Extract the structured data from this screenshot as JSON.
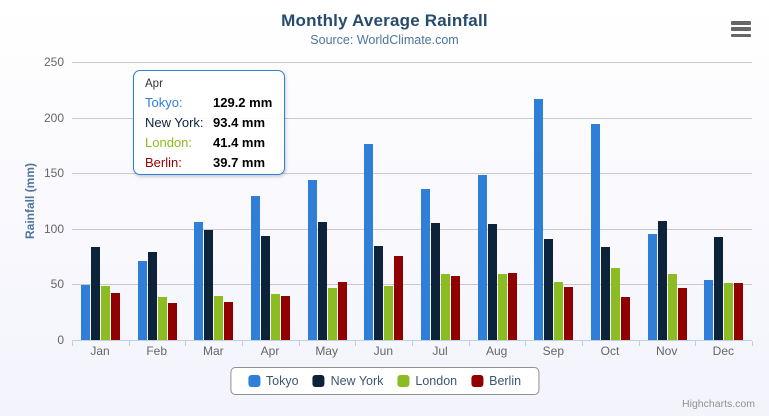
{
  "header": {
    "title": "Monthly Average Rainfall",
    "subtitle": "Source: WorldClimate.com"
  },
  "chart_data": {
    "type": "bar",
    "title": "Monthly Average Rainfall",
    "subtitle": "Source: WorldClimate.com",
    "categories": [
      "Jan",
      "Feb",
      "Mar",
      "Apr",
      "May",
      "Jun",
      "Jul",
      "Aug",
      "Sep",
      "Oct",
      "Nov",
      "Dec"
    ],
    "series": [
      {
        "name": "Tokyo",
        "color": "#2f7ed8",
        "values": [
          49.9,
          71.5,
          106.4,
          129.2,
          144.0,
          176.0,
          135.6,
          148.5,
          216.4,
          194.1,
          95.6,
          54.4
        ]
      },
      {
        "name": "New York",
        "color": "#0d233a",
        "values": [
          83.6,
          78.8,
          98.5,
          93.4,
          106.0,
          84.5,
          105.0,
          104.3,
          91.2,
          83.5,
          106.6,
          92.3
        ]
      },
      {
        "name": "London",
        "color": "#8bbc21",
        "values": [
          48.9,
          38.8,
          39.3,
          41.4,
          47.0,
          48.3,
          59.0,
          59.6,
          52.4,
          65.2,
          59.3,
          51.2
        ]
      },
      {
        "name": "Berlin",
        "color": "#910000",
        "values": [
          42.4,
          33.2,
          34.5,
          39.7,
          52.6,
          75.5,
          57.4,
          60.4,
          47.6,
          39.1,
          46.8,
          51.1
        ]
      }
    ],
    "xlabel": "",
    "ylabel": "Rainfall (mm)",
    "ylim": [
      0,
      250
    ],
    "yticks": [
      0,
      50,
      100,
      150,
      200,
      250
    ],
    "grid": true,
    "legend_position": "bottom"
  },
  "tooltip": {
    "header": "Apr",
    "border_color": "#2f7ed8",
    "rows": [
      {
        "label": "Tokyo:",
        "value": "129.2 mm",
        "color": "#2f7ed8"
      },
      {
        "label": "New York:",
        "value": "93.4 mm",
        "color": "#0d233a"
      },
      {
        "label": "London:",
        "value": "41.4 mm",
        "color": "#8bbc21"
      },
      {
        "label": "Berlin:",
        "value": "39.7 mm",
        "color": "#910000"
      }
    ]
  },
  "credits": {
    "label": "Highcharts.com"
  },
  "colors": {
    "title": "#274b6d",
    "subtitle": "#4d759e",
    "axis_text": "#666666",
    "grid": "#c9c9c9",
    "axis_line": "#c0d0e0",
    "legend_border": "#909090",
    "credits": "#909090"
  }
}
